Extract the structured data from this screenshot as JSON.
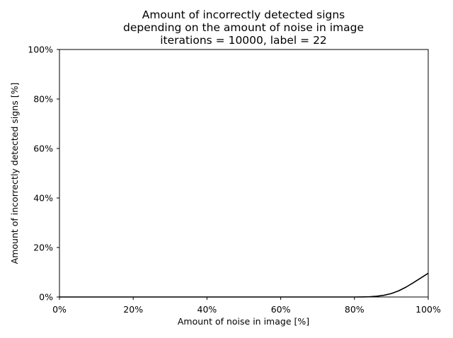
{
  "chart_data": {
    "type": "line",
    "title_lines": [
      "Amount of incorrectly detected signs",
      "depending on the amount of noise in image",
      "iterations = 10000, label = 22"
    ],
    "xlabel": "Amount of noise in image [%]",
    "ylabel": "Amount of incorrectly detected signs [%]",
    "xlim": [
      0,
      100
    ],
    "ylim": [
      0,
      100
    ],
    "xticks": [
      0,
      20,
      40,
      60,
      80,
      100
    ],
    "xtick_labels": [
      "0%",
      "20%",
      "40%",
      "60%",
      "80%",
      "100%"
    ],
    "yticks": [
      0,
      20,
      40,
      60,
      80,
      100
    ],
    "ytick_labels": [
      "0%",
      "20%",
      "40%",
      "60%",
      "80%",
      "100%"
    ],
    "grid": false,
    "line_color": "#000000",
    "series": [
      {
        "x": [
          0,
          10,
          20,
          30,
          40,
          50,
          60,
          70,
          80,
          82,
          84,
          86,
          88,
          90,
          92,
          94,
          96,
          98,
          100
        ],
        "values": [
          0,
          0,
          0,
          0,
          0,
          0,
          0,
          0,
          0,
          0.02,
          0.1,
          0.3,
          0.7,
          1.4,
          2.5,
          4.0,
          5.8,
          7.7,
          9.6
        ]
      }
    ]
  }
}
